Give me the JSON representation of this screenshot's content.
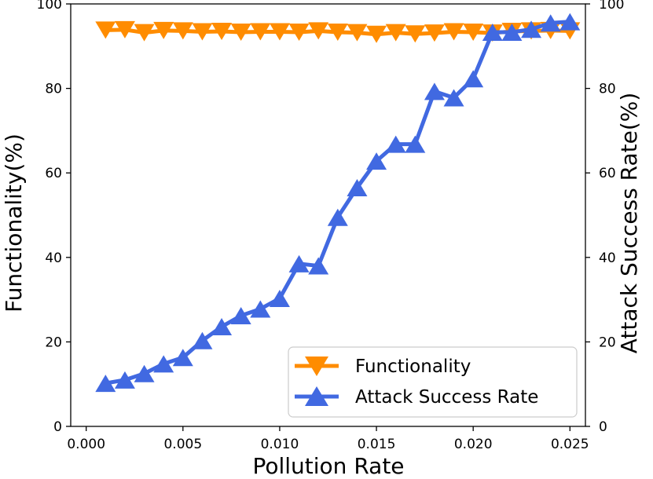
{
  "chart_data": {
    "type": "line",
    "xlabel": "Pollution Rate",
    "ylabel_left": "Functionality(%)",
    "ylabel_right": "Attack Success Rate(%)",
    "xlim": [
      -0.0008,
      0.0258
    ],
    "ylim": [
      0,
      100
    ],
    "x_ticks": [
      0.0,
      0.005,
      0.01,
      0.015,
      0.02,
      0.025
    ],
    "x_tick_labels": [
      "0.000",
      "0.005",
      "0.010",
      "0.015",
      "0.020",
      "0.025"
    ],
    "y_ticks": [
      0,
      20,
      40,
      60,
      80,
      100
    ],
    "y_tick_labels": [
      "0",
      "20",
      "40",
      "60",
      "80",
      "100"
    ],
    "legend_position": "lower-right",
    "x": [
      0.001,
      0.002,
      0.003,
      0.004,
      0.005,
      0.006,
      0.007,
      0.008,
      0.009,
      0.01,
      0.011,
      0.012,
      0.013,
      0.014,
      0.015,
      0.016,
      0.017,
      0.018,
      0.019,
      0.02,
      0.021,
      0.022,
      0.023,
      0.024,
      0.025
    ],
    "series": [
      {
        "name": "Functionality",
        "marker": "triangle-down",
        "color": "#ff8c00",
        "values": [
          93.8,
          93.9,
          93.2,
          93.7,
          93.6,
          93.4,
          93.5,
          93.3,
          93.4,
          93.4,
          93.3,
          93.6,
          93.3,
          93.2,
          92.8,
          93.2,
          92.9,
          93.1,
          93.4,
          93.3,
          93.1,
          93.5,
          93.6,
          93.7,
          93.6
        ]
      },
      {
        "name": "Attack Success Rate",
        "marker": "triangle-up",
        "color": "#4169e1",
        "values": [
          10.2,
          11.0,
          12.5,
          14.8,
          16.3,
          20.3,
          23.6,
          26.2,
          27.8,
          30.3,
          38.5,
          38.0,
          49.5,
          56.5,
          62.8,
          66.8,
          66.8,
          79.3,
          77.8,
          82.3,
          93.3,
          93.3,
          94.0,
          95.5,
          95.8
        ]
      }
    ]
  }
}
